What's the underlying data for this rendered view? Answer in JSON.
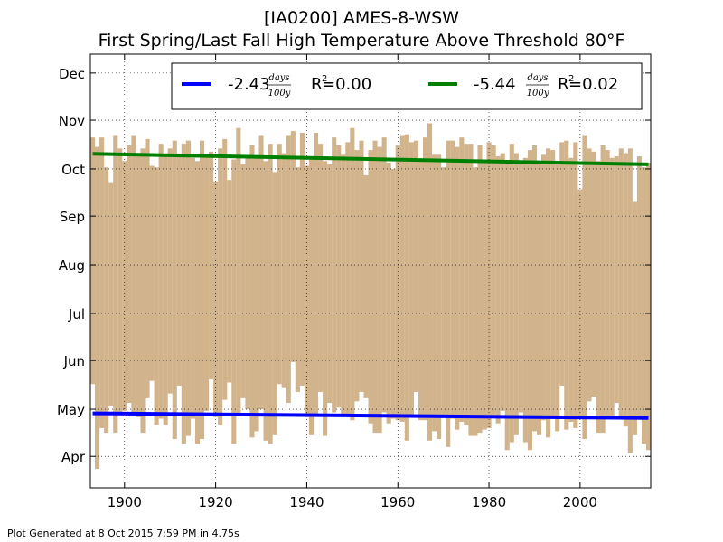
{
  "titles": {
    "line1": "[IA0200] AMES-8-WSW",
    "line2": "First Spring/Last Fall High Temperature Above Threshold 80°F"
  },
  "footer": "Plot Generated at 8 Oct 2015 7:59 PM in 4.75s",
  "colors": {
    "bars": "#d2b48c",
    "spring_trend": "#0000ff",
    "fall_trend": "#008000",
    "grid": "#000000"
  },
  "chart_data": {
    "type": "bar",
    "subtype": "floating-bar with linear trend lines",
    "x_range": [
      1892.5,
      2015.5
    ],
    "xticks": [
      1900,
      1920,
      1940,
      1960,
      1980,
      2000
    ],
    "y_ticks": [
      {
        "label": "Apr",
        "day": 91
      },
      {
        "label": "May",
        "day": 121
      },
      {
        "label": "Jun",
        "day": 152
      },
      {
        "label": "Jul",
        "day": 182
      },
      {
        "label": "Aug",
        "day": 213
      },
      {
        "label": "Sep",
        "day": 244
      },
      {
        "label": "Oct",
        "day": 274
      },
      {
        "label": "Nov",
        "day": 305
      },
      {
        "label": "Dec",
        "day": 335
      }
    ],
    "y_range": [
      71,
      347
    ],
    "grid": true,
    "legend_position": "top-right",
    "start_year": 1893,
    "end_year": 2015,
    "spring_day_of_year": [
      137,
      83,
      109,
      106,
      123,
      106,
      118,
      120,
      125,
      119,
      116,
      106,
      128,
      139,
      111,
      115,
      111,
      131,
      102,
      136,
      99,
      104,
      115,
      99,
      102,
      120,
      140,
      116,
      111,
      127,
      138,
      99,
      117,
      128,
      121,
      103,
      107,
      121,
      101,
      99,
      105,
      137,
      135,
      125,
      151,
      132,
      136,
      116,
      105,
      118,
      132,
      104,
      125,
      119,
      122,
      118,
      117,
      114,
      126,
      132,
      128,
      112,
      106,
      106,
      119,
      112,
      115,
      114,
      113,
      101,
      117,
      132,
      114,
      114,
      101,
      107,
      102,
      117,
      97,
      115,
      108,
      113,
      111,
      104,
      104,
      106,
      108,
      109,
      116,
      112,
      120,
      95,
      100,
      105,
      119,
      100,
      95,
      107,
      105,
      114,
      103,
      117,
      107,
      136,
      108,
      113,
      109,
      116,
      102,
      126,
      129,
      106,
      106,
      116,
      117,
      125,
      116,
      110,
      93,
      105,
      117,
      99,
      95
    ],
    "fall_day_of_year": [
      294,
      288,
      294,
      275,
      265,
      295,
      287,
      279,
      289,
      295,
      283,
      287,
      293,
      276,
      275,
      290,
      283,
      287,
      292,
      283,
      290,
      292,
      281,
      279,
      292,
      283,
      285,
      266,
      287,
      293,
      267,
      280,
      300,
      277,
      281,
      289,
      281,
      295,
      279,
      290,
      272,
      290,
      284,
      295,
      298,
      275,
      297,
      276,
      281,
      297,
      290,
      279,
      277,
      294,
      289,
      283,
      291,
      300,
      286,
      292,
      270,
      286,
      292,
      288,
      294,
      278,
      274,
      289,
      295,
      296,
      291,
      292,
      279,
      294,
      303,
      283,
      283,
      275,
      292,
      292,
      288,
      294,
      290,
      290,
      275,
      289,
      278,
      291,
      289,
      282,
      284,
      279,
      290,
      284,
      279,
      281,
      286,
      289,
      279,
      283,
      287,
      286,
      277,
      291,
      292,
      281,
      291,
      261,
      295,
      287,
      285,
      279,
      289,
      286,
      281,
      282,
      287,
      284,
      287,
      253,
      282,
      275,
      278
    ],
    "series": [
      {
        "name": "spring trend",
        "slope_days_per_100y": -2.43,
        "r2": 0.0,
        "y_start": 118.4,
        "y_end": 115.4
      },
      {
        "name": "fall trend",
        "slope_days_per_100y": -5.44,
        "r2": 0.02,
        "y_start": 283.6,
        "y_end": 276.9
      }
    ],
    "legend": {
      "spring": {
        "value": "-2.43",
        "frac_num": "days",
        "frac_den": "100y",
        "r2_label": "R",
        "r2_sup": "2",
        "r2_value": " =0.00"
      },
      "fall": {
        "value": "-5.44",
        "frac_num": "days",
        "frac_den": "100y",
        "r2_label": "R",
        "r2_sup": "2",
        "r2_value": " =0.02"
      }
    }
  }
}
